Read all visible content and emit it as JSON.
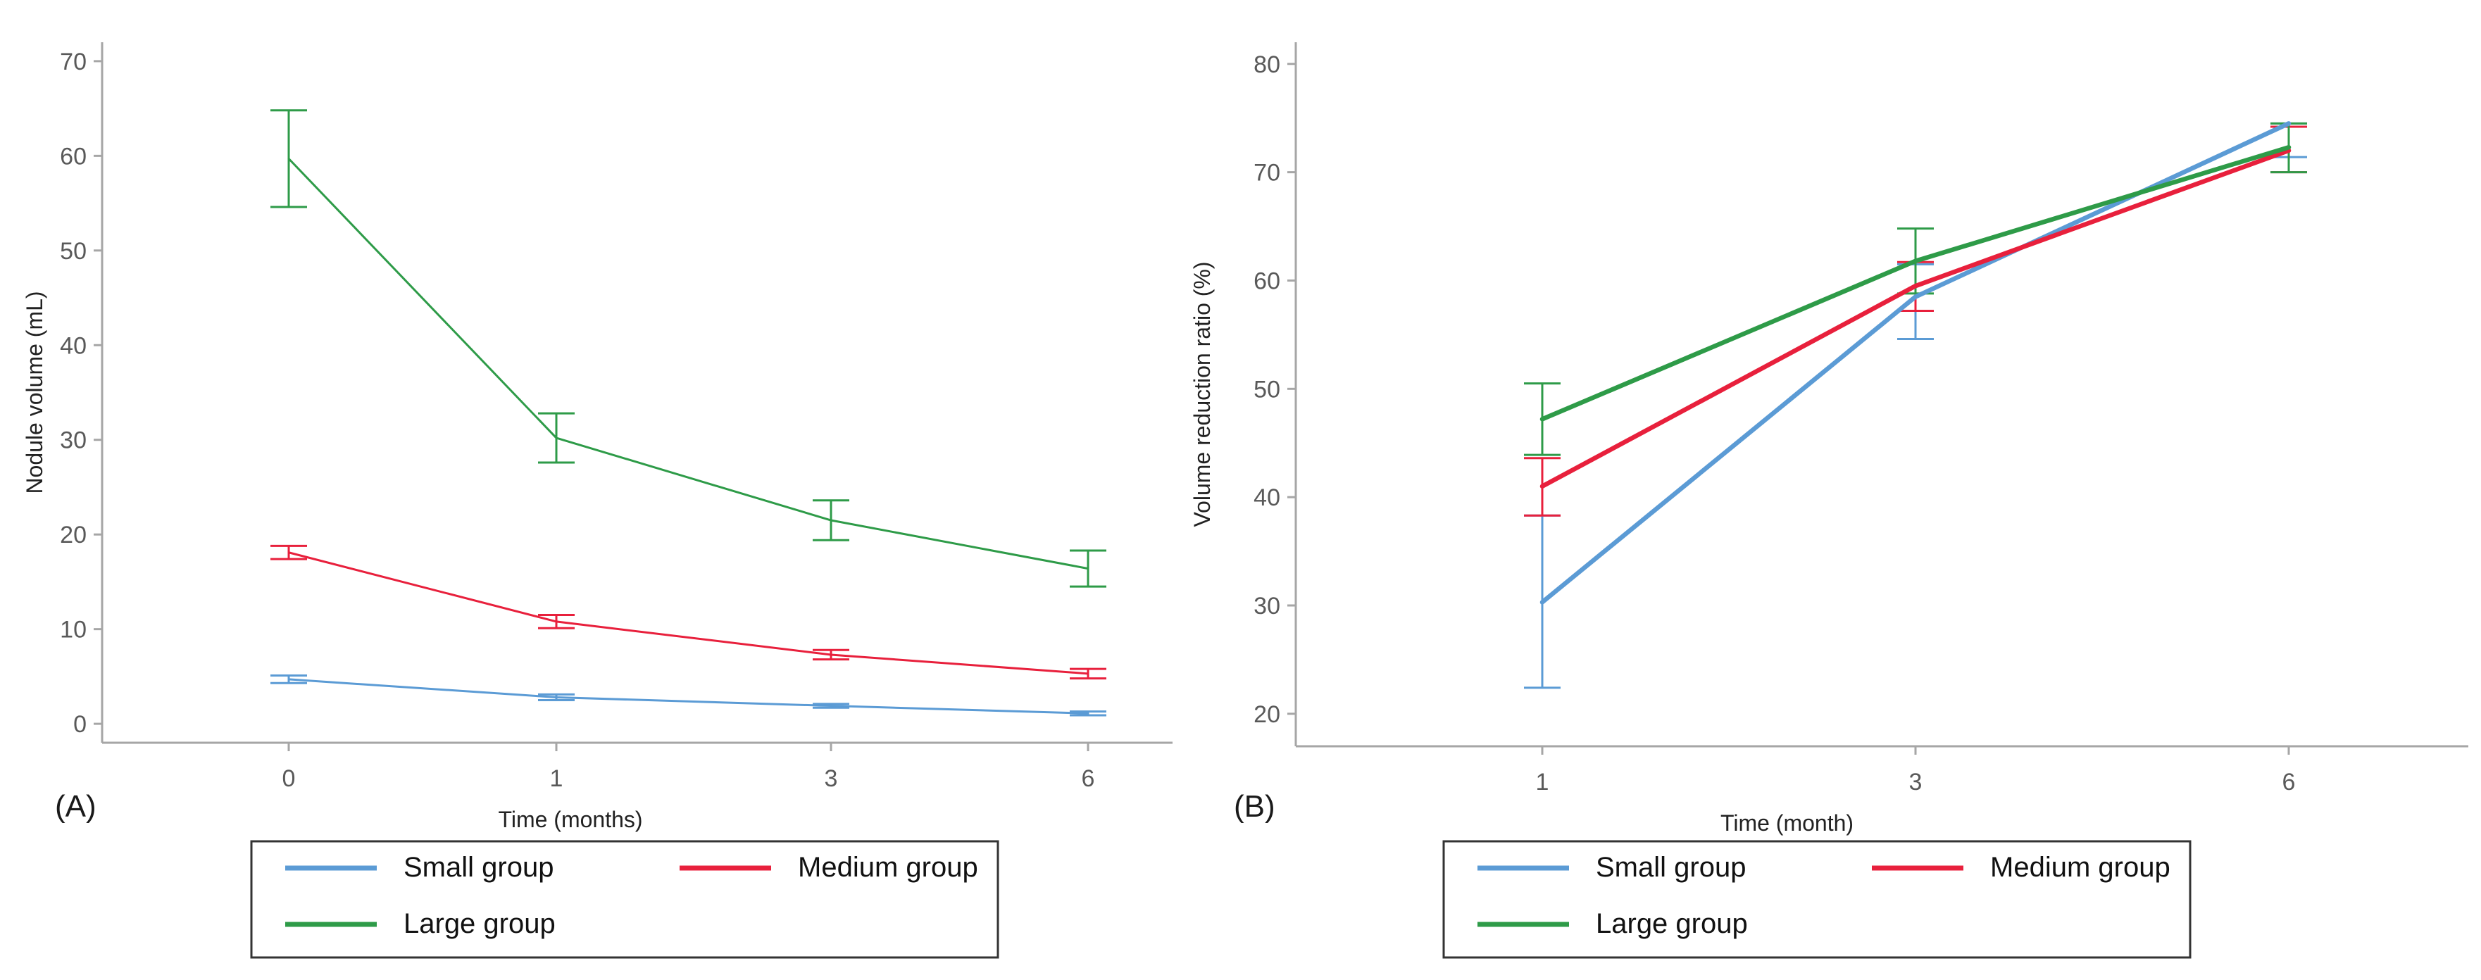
{
  "colors": {
    "small": "#5b9bd5",
    "medium": "#e8203c",
    "large": "#2e9b48",
    "axis": "#a6a6a6"
  },
  "chart_data": [
    {
      "panel_label": "(A)",
      "type": "line",
      "error_bars": true,
      "categories": [
        "0",
        "1",
        "3",
        "6"
      ],
      "xlabel": "Time (months)",
      "ylabel": "Nodule volume (mL)",
      "ylim": [
        -2,
        72
      ],
      "yticks": [
        0,
        10,
        20,
        30,
        40,
        50,
        60,
        70
      ],
      "series": [
        {
          "name": "Small group",
          "key": "small",
          "values": [
            4.7,
            2.8,
            1.9,
            1.1
          ],
          "lower": [
            4.3,
            2.5,
            1.7,
            0.9
          ],
          "upper": [
            5.1,
            3.1,
            2.1,
            1.3
          ]
        },
        {
          "name": "Medium group",
          "key": "medium",
          "values": [
            18.1,
            10.8,
            7.3,
            5.3
          ],
          "lower": [
            17.4,
            10.1,
            6.8,
            4.8
          ],
          "upper": [
            18.8,
            11.5,
            7.8,
            5.8
          ]
        },
        {
          "name": "Large group",
          "key": "large",
          "values": [
            59.7,
            30.2,
            21.5,
            16.4
          ],
          "lower": [
            54.6,
            27.6,
            19.4,
            14.5
          ],
          "upper": [
            64.8,
            32.8,
            23.6,
            18.3
          ]
        }
      ],
      "legend": [
        "Small group",
        "Medium group",
        "Large group"
      ]
    },
    {
      "panel_label": "(B)",
      "type": "line",
      "error_bars": true,
      "categories": [
        "1",
        "3",
        "6"
      ],
      "xlabel": "Time (month)",
      "ylabel": "Volume reduction ratio (%)",
      "ylim": [
        17,
        82
      ],
      "yticks": [
        20,
        30,
        40,
        50,
        60,
        70,
        80
      ],
      "series": [
        {
          "name": "Small group",
          "key": "small",
          "values": [
            30.3,
            58.5,
            74.5
          ],
          "lower": [
            22.4,
            54.6,
            71.4
          ],
          "upper": [
            38.3,
            61.5,
            74.5
          ]
        },
        {
          "name": "Medium group",
          "key": "medium",
          "values": [
            41.0,
            59.5,
            72.0
          ],
          "lower": [
            38.3,
            57.2,
            70.0
          ],
          "upper": [
            43.6,
            61.7,
            74.2
          ]
        },
        {
          "name": "Large group",
          "key": "large",
          "values": [
            47.2,
            61.8,
            72.3
          ],
          "lower": [
            43.9,
            58.8,
            70.0
          ],
          "upper": [
            50.5,
            64.8,
            74.5
          ]
        }
      ],
      "legend": [
        "Small group",
        "Medium group",
        "Large group"
      ]
    }
  ]
}
